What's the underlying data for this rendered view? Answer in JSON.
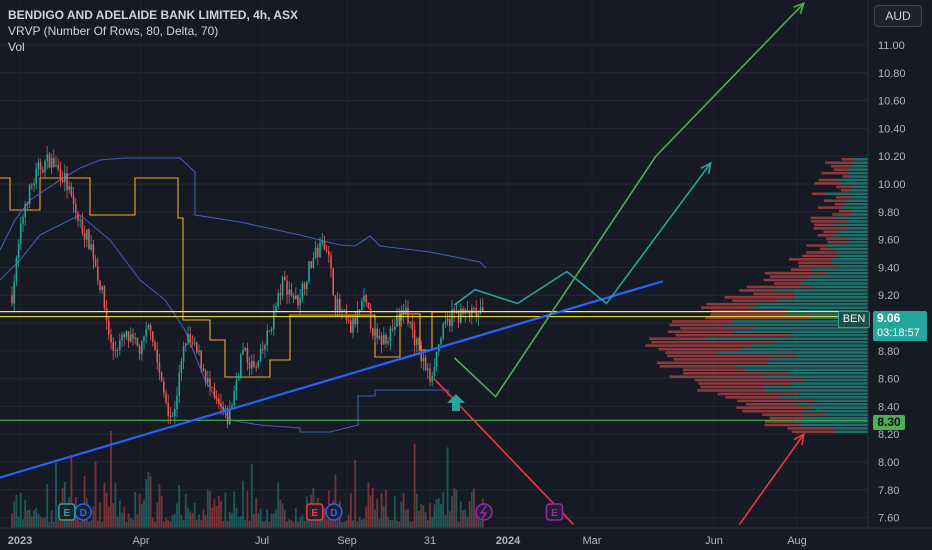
{
  "header": {
    "title": "BENDIGO AND ADELAIDE BANK LIMITED, 4h, ASX",
    "indicator": "VRVP (Number Of Rows, 80, Delta, 70)",
    "volume_label": "Vol"
  },
  "currency": "AUD",
  "colors": {
    "background": "#161a25",
    "up": "#26a69a",
    "down": "#ef5350",
    "trendline": "#2962ff",
    "resistance": "#ffeb3b",
    "support": "#4caf50",
    "vwap_orange": "#f5a623",
    "vwap_blue": "#3f5fb5",
    "projection_green": "#4caf50",
    "projection_teal": "#26a69a",
    "projection_red": "#f23645"
  },
  "price_tag": {
    "symbol": "BEN",
    "price": "9.06",
    "countdown": "03:18:57"
  },
  "support_tag": "8.30",
  "chart_data": {
    "type": "candlestick",
    "symbol": "BEN",
    "exchange": "ASX",
    "interval": "4h",
    "currency": "AUD",
    "y_ticks": [
      "11.00",
      "10.80",
      "10.60",
      "10.40",
      "10.20",
      "10.00",
      "9.80",
      "9.60",
      "9.40",
      "9.20",
      "9.00",
      "8.80",
      "8.60",
      "8.40",
      "8.20",
      "8.00",
      "7.80",
      "7.60"
    ],
    "ylim": [
      7.6,
      11.3
    ],
    "x_ticks": [
      "2023",
      "Apr",
      "Jul",
      "Sep",
      "31",
      "2024",
      "Mar",
      "Jun",
      "Aug"
    ],
    "price_path": [
      [
        "2023-01-01",
        9.2
      ],
      [
        "2023-01-10",
        9.85
      ],
      [
        "2023-01-20",
        10.1
      ],
      [
        "2023-01-28",
        10.18
      ],
      [
        "2023-02-08",
        10.05
      ],
      [
        "2023-02-18",
        9.75
      ],
      [
        "2023-02-28",
        9.55
      ],
      [
        "2023-03-08",
        9.2
      ],
      [
        "2023-03-15",
        8.8
      ],
      [
        "2023-03-25",
        8.9
      ],
      [
        "2023-04-05",
        8.8
      ],
      [
        "2023-04-12",
        9.0
      ],
      [
        "2023-04-20",
        8.55
      ],
      [
        "2023-04-28",
        8.3
      ],
      [
        "2023-05-08",
        8.9
      ],
      [
        "2023-05-18",
        8.75
      ],
      [
        "2023-05-28",
        8.45
      ],
      [
        "2023-06-08",
        8.3
      ],
      [
        "2023-06-18",
        8.8
      ],
      [
        "2023-06-28",
        8.65
      ],
      [
        "2023-07-08",
        8.95
      ],
      [
        "2023-07-18",
        9.3
      ],
      [
        "2023-07-28",
        9.15
      ],
      [
        "2023-08-08",
        9.45
      ],
      [
        "2023-08-18",
        9.6
      ],
      [
        "2023-08-25",
        9.15
      ],
      [
        "2023-09-05",
        8.95
      ],
      [
        "2023-09-15",
        9.15
      ],
      [
        "2023-09-25",
        8.85
      ],
      [
        "2023-10-05",
        8.95
      ],
      [
        "2023-10-15",
        9.1
      ],
      [
        "2023-10-25",
        8.8
      ],
      [
        "2023-11-02",
        8.6
      ],
      [
        "2023-11-10",
        8.9
      ],
      [
        "2023-11-18",
        9.06
      ]
    ],
    "lines": {
      "resistance": 9.06,
      "support": 8.3,
      "trendline": [
        [
          "2022-12-10",
          7.85
        ],
        [
          "2024-04-20",
          9.3
        ]
      ]
    },
    "projections": [
      {
        "color": "green",
        "points": [
          [
            "2023-11-20",
            8.75
          ],
          [
            "2023-12-20",
            8.47
          ],
          [
            "2024-04-15",
            10.2
          ],
          [
            "2024-08-01",
            11.3
          ]
        ]
      },
      {
        "color": "teal",
        "points": [
          [
            "2023-11-20",
            9.13
          ],
          [
            "2023-12-05",
            9.24
          ],
          [
            "2024-01-05",
            9.14
          ],
          [
            "2024-02-10",
            9.37
          ],
          [
            "2024-03-10",
            9.14
          ],
          [
            "2024-05-25",
            10.15
          ]
        ]
      },
      {
        "color": "red",
        "points": [
          [
            "2023-11-05",
            8.6
          ],
          [
            "2024-02-15",
            7.55
          ]
        ]
      },
      {
        "color": "red",
        "points": [
          [
            "2024-06-15",
            7.55
          ],
          [
            "2024-08-01",
            8.2
          ]
        ]
      }
    ],
    "event_markers": [
      {
        "label": "E",
        "date": "2023-02-10",
        "color": "#26a69a"
      },
      {
        "label": "D",
        "date": "2023-02-22",
        "color": "#2962ff"
      },
      {
        "label": "E",
        "date": "2023-08-10",
        "color": "#f23645"
      },
      {
        "label": "D",
        "date": "2023-08-24",
        "color": "#2962ff"
      },
      {
        "label": "E",
        "date": "2024-02-01",
        "color": "#9c27b0"
      }
    ]
  }
}
